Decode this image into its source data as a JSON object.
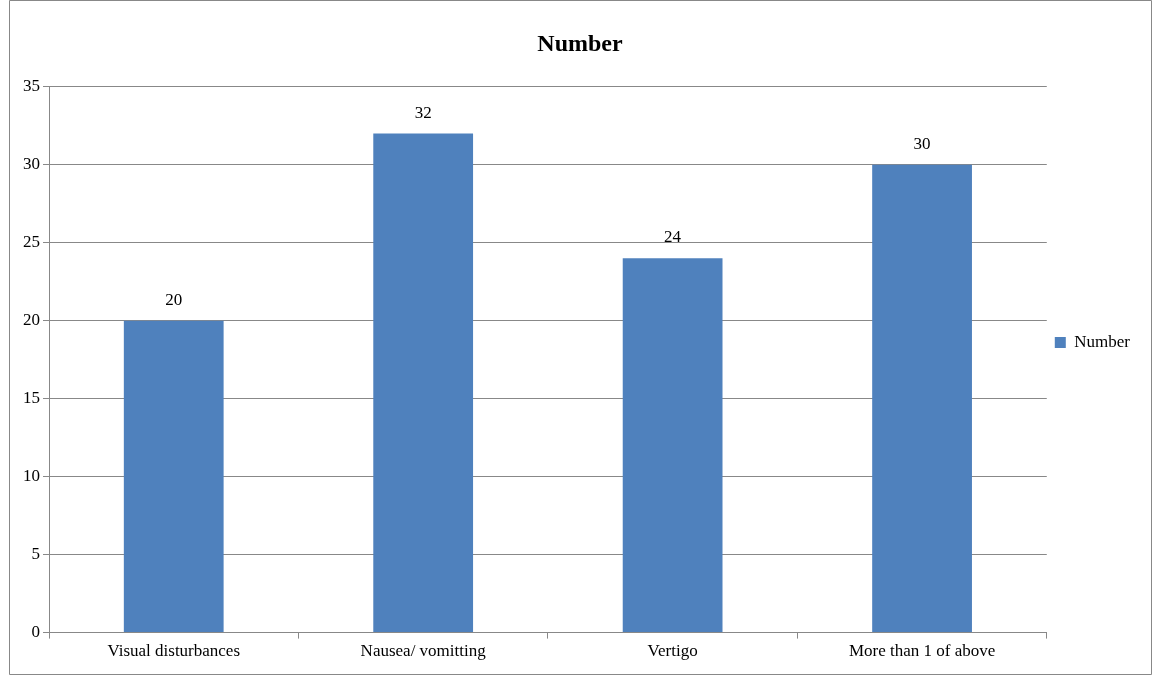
{
  "chart_data": {
    "type": "bar",
    "title": "Number",
    "categories": [
      "Visual disturbances",
      "Nausea/ vomitting",
      "Vertigo",
      "More than 1 of above"
    ],
    "series": [
      {
        "name": "Number",
        "color": "#4f81bd",
        "values": [
          20,
          32,
          24,
          30
        ]
      }
    ],
    "ylim": [
      0,
      35
    ],
    "yticks": [
      0,
      5,
      10,
      15,
      20,
      25,
      30,
      35
    ],
    "grid": "y",
    "legend": "right",
    "data_labels": true
  }
}
